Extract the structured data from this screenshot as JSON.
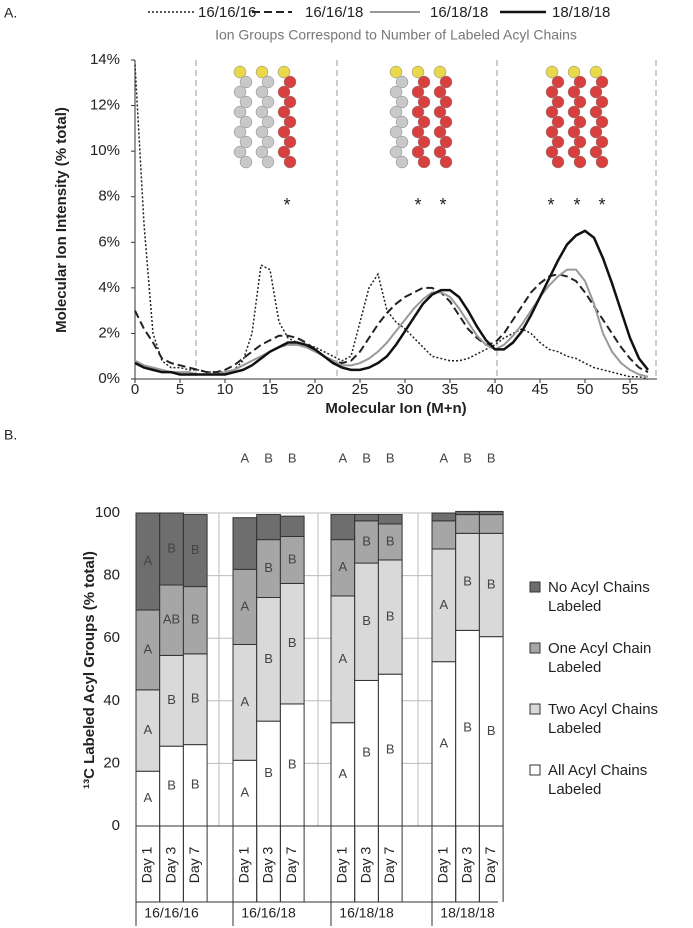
{
  "chart_data": [
    {
      "type": "line",
      "panel": "A.",
      "subtitle": "Ion Groups Correspond to Number of Labeled Acyl Chains",
      "x_label": "Molecular Ion (M+n)",
      "y_label": "Molecular Ion Intensity (% total)",
      "x": [
        0,
        1,
        2,
        3,
        4,
        5,
        6,
        7,
        8,
        9,
        10,
        11,
        12,
        13,
        14,
        15,
        16,
        17,
        18,
        19,
        20,
        21,
        22,
        23,
        24,
        25,
        26,
        27,
        28,
        29,
        30,
        31,
        32,
        33,
        34,
        35,
        36,
        37,
        38,
        39,
        40,
        41,
        42,
        43,
        44,
        45,
        46,
        47,
        48,
        49,
        50,
        51,
        52,
        53,
        54,
        55,
        56,
        57
      ],
      "series": [
        {
          "name": "16/16/16",
          "color": "#222222",
          "style": "dotted",
          "line_width": 1.5,
          "values": [
            13.8,
            6.8,
            2.0,
            0.8,
            0.5,
            0.5,
            0.4,
            0.4,
            0.3,
            0.3,
            0.3,
            0.4,
            0.8,
            2.0,
            5.0,
            4.8,
            2.5,
            1.8,
            1.6,
            1.5,
            1.4,
            1.2,
            1.0,
            0.8,
            1.0,
            2.5,
            4.0,
            4.6,
            3.0,
            2.5,
            2.2,
            1.8,
            1.4,
            1.0,
            0.9,
            0.8,
            0.8,
            0.9,
            1.1,
            1.3,
            1.5,
            1.8,
            2.0,
            2.2,
            2.0,
            1.6,
            1.3,
            1.2,
            1.0,
            0.9,
            0.7,
            0.5,
            0.4,
            0.3,
            0.2,
            0.1,
            0.1,
            0.0
          ]
        },
        {
          "name": "16/16/18",
          "color": "#222222",
          "style": "dashed",
          "line_width": 2,
          "values": [
            3.0,
            2.2,
            1.6,
            0.9,
            0.7,
            0.6,
            0.5,
            0.4,
            0.3,
            0.3,
            0.4,
            0.6,
            0.9,
            1.2,
            1.5,
            1.7,
            1.9,
            1.9,
            1.8,
            1.6,
            1.3,
            1.0,
            0.8,
            0.7,
            0.8,
            1.2,
            1.8,
            2.4,
            2.9,
            3.3,
            3.6,
            3.8,
            4.0,
            4.0,
            3.8,
            3.4,
            2.8,
            2.2,
            1.8,
            1.5,
            1.6,
            2.0,
            2.6,
            3.2,
            3.8,
            4.2,
            4.5,
            4.6,
            4.5,
            4.3,
            3.8,
            3.2,
            2.6,
            2.0,
            1.4,
            0.9,
            0.5,
            0.3
          ]
        },
        {
          "name": "16/18/18",
          "color": "#999999",
          "style": "solid",
          "line_width": 2,
          "values": [
            0.8,
            0.6,
            0.5,
            0.4,
            0.3,
            0.3,
            0.3,
            0.2,
            0.2,
            0.2,
            0.3,
            0.4,
            0.6,
            0.8,
            1.0,
            1.2,
            1.4,
            1.5,
            1.5,
            1.4,
            1.2,
            1.0,
            0.8,
            0.6,
            0.6,
            0.7,
            0.9,
            1.2,
            1.6,
            2.1,
            2.6,
            3.1,
            3.5,
            3.8,
            3.8,
            3.6,
            3.1,
            2.5,
            1.9,
            1.5,
            1.3,
            1.5,
            1.9,
            2.4,
            3.0,
            3.6,
            4.1,
            4.5,
            4.8,
            4.8,
            4.3,
            3.3,
            2.0,
            1.2,
            0.7,
            0.4,
            0.2,
            0.1
          ]
        },
        {
          "name": "18/18/18",
          "color": "#111111",
          "style": "solid",
          "line_width": 2.5,
          "values": [
            0.7,
            0.5,
            0.4,
            0.3,
            0.3,
            0.2,
            0.2,
            0.2,
            0.2,
            0.2,
            0.2,
            0.3,
            0.4,
            0.6,
            0.9,
            1.2,
            1.4,
            1.6,
            1.6,
            1.5,
            1.3,
            1.0,
            0.7,
            0.5,
            0.4,
            0.4,
            0.5,
            0.7,
            1.0,
            1.5,
            2.1,
            2.7,
            3.3,
            3.7,
            3.9,
            3.9,
            3.6,
            3.0,
            2.3,
            1.7,
            1.3,
            1.3,
            1.6,
            2.1,
            2.8,
            3.6,
            4.4,
            5.2,
            5.9,
            6.3,
            6.5,
            6.2,
            5.3,
            4.2,
            3.0,
            1.8,
            0.9,
            0.4
          ]
        }
      ],
      "xlim": [
        0,
        58
      ],
      "xticks": [
        0,
        5,
        10,
        15,
        20,
        25,
        30,
        35,
        40,
        45,
        50,
        55
      ],
      "ylim": [
        0,
        14
      ],
      "yticks": [
        {
          "value": 0,
          "label": "0%"
        },
        {
          "value": 2,
          "label": "2%"
        },
        {
          "value": 4,
          "label": "4%"
        },
        {
          "value": 6,
          "label": "6%"
        },
        {
          "value": 8,
          "label": "8%"
        },
        {
          "value": 10,
          "label": "10%"
        },
        {
          "value": 12,
          "label": "12%"
        },
        {
          "value": 14,
          "label": "14%"
        }
      ],
      "annotations": [
        "*",
        "*",
        "*",
        "*",
        "*",
        "*"
      ]
    },
    {
      "type": "bar",
      "stacked": true,
      "panel": "B.",
      "y_label": "¹³C Labeled Acyl Groups (% total)",
      "categories": [
        "Day 1",
        "Day 3",
        "Day 7",
        "Day 1",
        "Day 3",
        "Day 7",
        "Day 1",
        "Day 3",
        "Day 7",
        "Day 1",
        "Day 3",
        "Day 7"
      ],
      "groups": [
        "16/16/16",
        "16/16/18",
        "16/18/18",
        "18/18/18"
      ],
      "series": [
        {
          "name": "All Acyl Chains Labeled",
          "color": "#ffffff",
          "values": [
            17.5,
            25.5,
            26,
            21,
            33.5,
            39,
            33,
            46.5,
            48.5,
            52.5,
            62.5,
            60.5
          ],
          "letters": [
            "A",
            "B",
            "B",
            "A",
            "B",
            "B",
            "A",
            "B",
            "B",
            "A",
            "B",
            "B"
          ]
        },
        {
          "name": "Two Acyl Chains Labeled",
          "color": "#d9d9d9",
          "values": [
            26,
            29,
            29,
            37,
            39.5,
            38.5,
            40.5,
            37.5,
            36.5,
            36,
            31,
            33
          ],
          "letters": [
            "A",
            "B",
            "B",
            "A",
            "B",
            "B",
            "A",
            "B",
            "B",
            "A",
            "B",
            "B"
          ]
        },
        {
          "name": "One Acyl Chain Labeled",
          "color": "#a6a6a6",
          "values": [
            25.5,
            22.5,
            21.5,
            24,
            18.5,
            15,
            18,
            13.5,
            11.5,
            9,
            6,
            6
          ],
          "letters": [
            "A",
            "AB",
            "B",
            "A",
            "B",
            "B",
            "A",
            "B",
            "B",
            null,
            null,
            null
          ]
        },
        {
          "name": "No Acyl Chains Labeled",
          "color": "#6e6e6e",
          "values": [
            31,
            23,
            23,
            16.5,
            8,
            6.5,
            8,
            2,
            3,
            2.5,
            1,
            1
          ],
          "letters": [
            "A",
            "B",
            "B",
            "A",
            "B",
            "B",
            "A",
            "B",
            "B",
            "A",
            "B",
            "B"
          ]
        }
      ],
      "ylim": [
        0,
        100
      ],
      "yticks": [
        0,
        20,
        40,
        60,
        80,
        100
      ],
      "grid": true
    }
  ]
}
